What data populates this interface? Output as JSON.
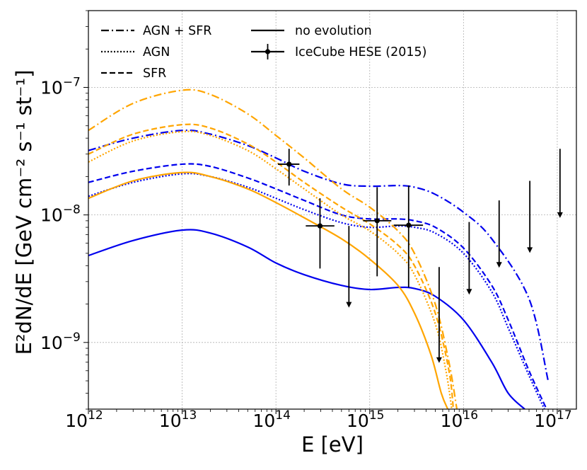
{
  "chart_data": {
    "type": "line",
    "xscale": "log",
    "yscale": "log",
    "xlim": [
      1000000000000.0,
      1.6e+17
    ],
    "ylim": [
      3e-10,
      4e-07
    ],
    "xlabel": "E [eV]",
    "ylabel": "E²dN/dE [GeV cm⁻² s⁻¹ st⁻¹]",
    "grid": true,
    "xticks": [
      {
        "value": 1000000000000.0,
        "base": "10",
        "exp": "12"
      },
      {
        "value": 10000000000000.0,
        "base": "10",
        "exp": "13"
      },
      {
        "value": 100000000000000.0,
        "base": "10",
        "exp": "14"
      },
      {
        "value": 1000000000000000.0,
        "base": "10",
        "exp": "15"
      },
      {
        "value": 1e+16,
        "base": "10",
        "exp": "16"
      },
      {
        "value": 1e+17,
        "base": "10",
        "exp": "17"
      }
    ],
    "yticks": [
      {
        "value": 1e-09,
        "base": "10",
        "exp": "−9"
      },
      {
        "value": 1e-08,
        "base": "10",
        "exp": "−8"
      },
      {
        "value": 1e-07,
        "base": "10",
        "exp": "−7"
      }
    ],
    "colors": {
      "blue": "#0000ee",
      "orange": "#ffa500",
      "black": "#000000"
    },
    "legend": {
      "location": "top-left",
      "entries": [
        {
          "label": "AGN + SFR",
          "style": "dashdot",
          "marker": false
        },
        {
          "label": "AGN",
          "style": "dotted",
          "marker": false
        },
        {
          "label": "SFR",
          "style": "dashed",
          "marker": false
        },
        {
          "label": "no evolution",
          "style": "solid",
          "marker": false
        },
        {
          "label": "IceCube HESE (2015)",
          "style": "solid",
          "marker": true
        }
      ]
    },
    "series": [
      {
        "name": "AGN + SFR (blue)",
        "color": "blue",
        "style": "dashdot",
        "x": [
          1000000000000.0,
          3000000000000.0,
          10000000000000.0,
          20000000000000.0,
          50000000000000.0,
          100000000000000.0,
          200000000000000.0,
          500000000000000.0,
          1000000000000000.0,
          2000000000000000.0,
          3000000000000000.0,
          5000000000000000.0,
          1e+16,
          2e+16,
          5e+16,
          8e+16
        ],
        "y": [
          3.2e-08,
          4e-08,
          4.6e-08,
          4.3e-08,
          3.5e-08,
          2.8e-08,
          2.2e-08,
          1.75e-08,
          1.68e-08,
          1.7e-08,
          1.65e-08,
          1.45e-08,
          1.05e-08,
          6.5e-09,
          2.2e-09,
          5e-10
        ]
      },
      {
        "name": "SFR (blue)",
        "color": "blue",
        "style": "dashed",
        "x": [
          1000000000000.0,
          3000000000000.0,
          10000000000000.0,
          20000000000000.0,
          50000000000000.0,
          100000000000000.0,
          200000000000000.0,
          500000000000000.0,
          1000000000000000.0,
          2000000000000000.0,
          3000000000000000.0,
          5000000000000000.0,
          1e+16,
          2e+16,
          3e+16,
          5e+16,
          7.7e+16
        ],
        "y": [
          1.8e-08,
          2.2e-08,
          2.5e-08,
          2.4e-08,
          1.95e-08,
          1.6e-08,
          1.3e-08,
          1e-08,
          9.3e-09,
          9.3e-09,
          9e-09,
          8e-09,
          5.5e-09,
          2.8e-09,
          1.5e-09,
          6e-10,
          3e-10
        ]
      },
      {
        "name": "AGN (blue)",
        "color": "blue",
        "style": "dotted",
        "x": [
          1000000000000.0,
          3000000000000.0,
          10000000000000.0,
          20000000000000.0,
          50000000000000.0,
          100000000000000.0,
          200000000000000.0,
          500000000000000.0,
          1000000000000000.0,
          2000000000000000.0,
          3000000000000000.0,
          5000000000000000.0,
          1e+16,
          2e+16,
          3e+16,
          5e+16,
          7.3e+16
        ],
        "y": [
          1.4e-08,
          1.8e-08,
          2.1e-08,
          2e-08,
          1.65e-08,
          1.35e-08,
          1.1e-08,
          8.7e-09,
          8e-09,
          8.2e-09,
          8e-09,
          7.2e-09,
          5e-09,
          2.5e-09,
          1.3e-09,
          5.5e-10,
          3e-10
        ]
      },
      {
        "name": "no evolution (blue)",
        "color": "blue",
        "style": "solid",
        "x": [
          1000000000000.0,
          3000000000000.0,
          10000000000000.0,
          20000000000000.0,
          50000000000000.0,
          100000000000000.0,
          200000000000000.0,
          500000000000000.0,
          1000000000000000.0,
          2000000000000000.0,
          3000000000000000.0,
          5000000000000000.0,
          1e+16,
          2e+16,
          3e+16,
          4.5e+16
        ],
        "y": [
          4.8e-09,
          6.3e-09,
          7.6e-09,
          7.2e-09,
          5.6e-09,
          4.2e-09,
          3.4e-09,
          2.8e-09,
          2.6e-09,
          2.7e-09,
          2.65e-09,
          2.3e-09,
          1.5e-09,
          7e-10,
          4e-10,
          3e-10
        ]
      },
      {
        "name": "AGN + SFR (orange)",
        "color": "orange",
        "style": "dashdot",
        "x": [
          1000000000000.0,
          3000000000000.0,
          10000000000000.0,
          20000000000000.0,
          50000000000000.0,
          100000000000000.0,
          200000000000000.0,
          500000000000000.0,
          1000000000000000.0,
          2000000000000000.0,
          3000000000000000.0,
          5000000000000000.0,
          7000000000000000.0,
          8500000000000000.0
        ],
        "y": [
          4.6e-08,
          7.5e-08,
          9.5e-08,
          8.8e-08,
          6.2e-08,
          4.2e-08,
          2.8e-08,
          1.6e-08,
          1.15e-08,
          7.5e-09,
          5e-09,
          2e-09,
          7e-10,
          3e-10
        ]
      },
      {
        "name": "SFR (orange)",
        "color": "orange",
        "style": "dashed",
        "x": [
          1000000000000.0,
          3000000000000.0,
          10000000000000.0,
          20000000000000.0,
          50000000000000.0,
          100000000000000.0,
          200000000000000.0,
          500000000000000.0,
          1000000000000000.0,
          2000000000000000.0,
          3000000000000000.0,
          5000000000000000.0,
          7000000000000000.0,
          7800000000000000.0
        ],
        "y": [
          3e-08,
          4.3e-08,
          5.1e-08,
          4.8e-08,
          3.6e-08,
          2.6e-08,
          1.8e-08,
          1.15e-08,
          8.5e-09,
          5.8e-09,
          4e-09,
          1.7e-09,
          6e-10,
          3e-10
        ]
      },
      {
        "name": "AGN (orange)",
        "color": "orange",
        "style": "dotted",
        "x": [
          1000000000000.0,
          3000000000000.0,
          10000000000000.0,
          20000000000000.0,
          50000000000000.0,
          100000000000000.0,
          200000000000000.0,
          500000000000000.0,
          1000000000000000.0,
          2000000000000000.0,
          3000000000000000.0,
          5000000000000000.0,
          6500000000000000.0,
          7500000000000000.0
        ],
        "y": [
          2.6e-08,
          3.8e-08,
          4.5e-08,
          4.2e-08,
          3.2e-08,
          2.3e-08,
          1.6e-08,
          1e-08,
          7.5e-09,
          5e-09,
          3.4e-09,
          1.4e-09,
          6e-10,
          3e-10
        ]
      },
      {
        "name": "no evolution (orange)",
        "color": "orange",
        "style": "solid",
        "x": [
          1000000000000.0,
          3000000000000.0,
          10000000000000.0,
          20000000000000.0,
          50000000000000.0,
          100000000000000.0,
          200000000000000.0,
          500000000000000.0,
          1000000000000000.0,
          2000000000000000.0,
          3000000000000000.0,
          4500000000000000.0,
          5800000000000000.0,
          6800000000000000.0
        ],
        "y": [
          1.35e-08,
          1.85e-08,
          2.15e-08,
          2e-08,
          1.6e-08,
          1.25e-08,
          9.5e-09,
          6.5e-09,
          4.5e-09,
          2.8e-09,
          1.7e-09,
          8e-10,
          4e-10,
          3e-10
        ]
      }
    ],
    "icecube_points": [
      {
        "x": 138000000000000.0,
        "y": 2.5e-08,
        "xerr": [
          105000000000000.0,
          178000000000000.0
        ],
        "yerr": [
          1.7e-08,
          3.3e-08
        ]
      },
      {
        "x": 295000000000000.0,
        "y": 8.2e-09,
        "xerr": [
          208000000000000.0,
          420000000000000.0
        ],
        "yerr": [
          3.8e-09,
          1.35e-08
        ]
      },
      {
        "x": 1200000000000000.0,
        "y": 9e-09,
        "xerr": [
          850000000000000.0,
          1700000000000000.0
        ],
        "yerr": [
          3.3e-09,
          1.65e-08
        ]
      },
      {
        "x": 2600000000000000.0,
        "y": 8.3e-09,
        "xerr": [
          1800000000000000.0,
          3700000000000000.0
        ],
        "yerr": [
          2.7e-09,
          1.7e-08
        ]
      }
    ],
    "upper_limits": [
      {
        "x": 600000000000000.0,
        "y_top": 8.2e-09,
        "y_arrow": 1.9e-09
      },
      {
        "x": 5500000000000000.0,
        "y_top": 3.9e-09,
        "y_arrow": 7e-10
      },
      {
        "x": 1.15e+16,
        "y_top": 8.8e-09,
        "y_arrow": 2.4e-09
      },
      {
        "x": 2.4e+16,
        "y_top": 1.3e-08,
        "y_arrow": 3.9e-09
      },
      {
        "x": 5.1e+16,
        "y_top": 1.85e-08,
        "y_arrow": 5.1e-09
      },
      {
        "x": 1.07e+17,
        "y_top": 3.3e-08,
        "y_arrow": 9.6e-09
      }
    ]
  }
}
